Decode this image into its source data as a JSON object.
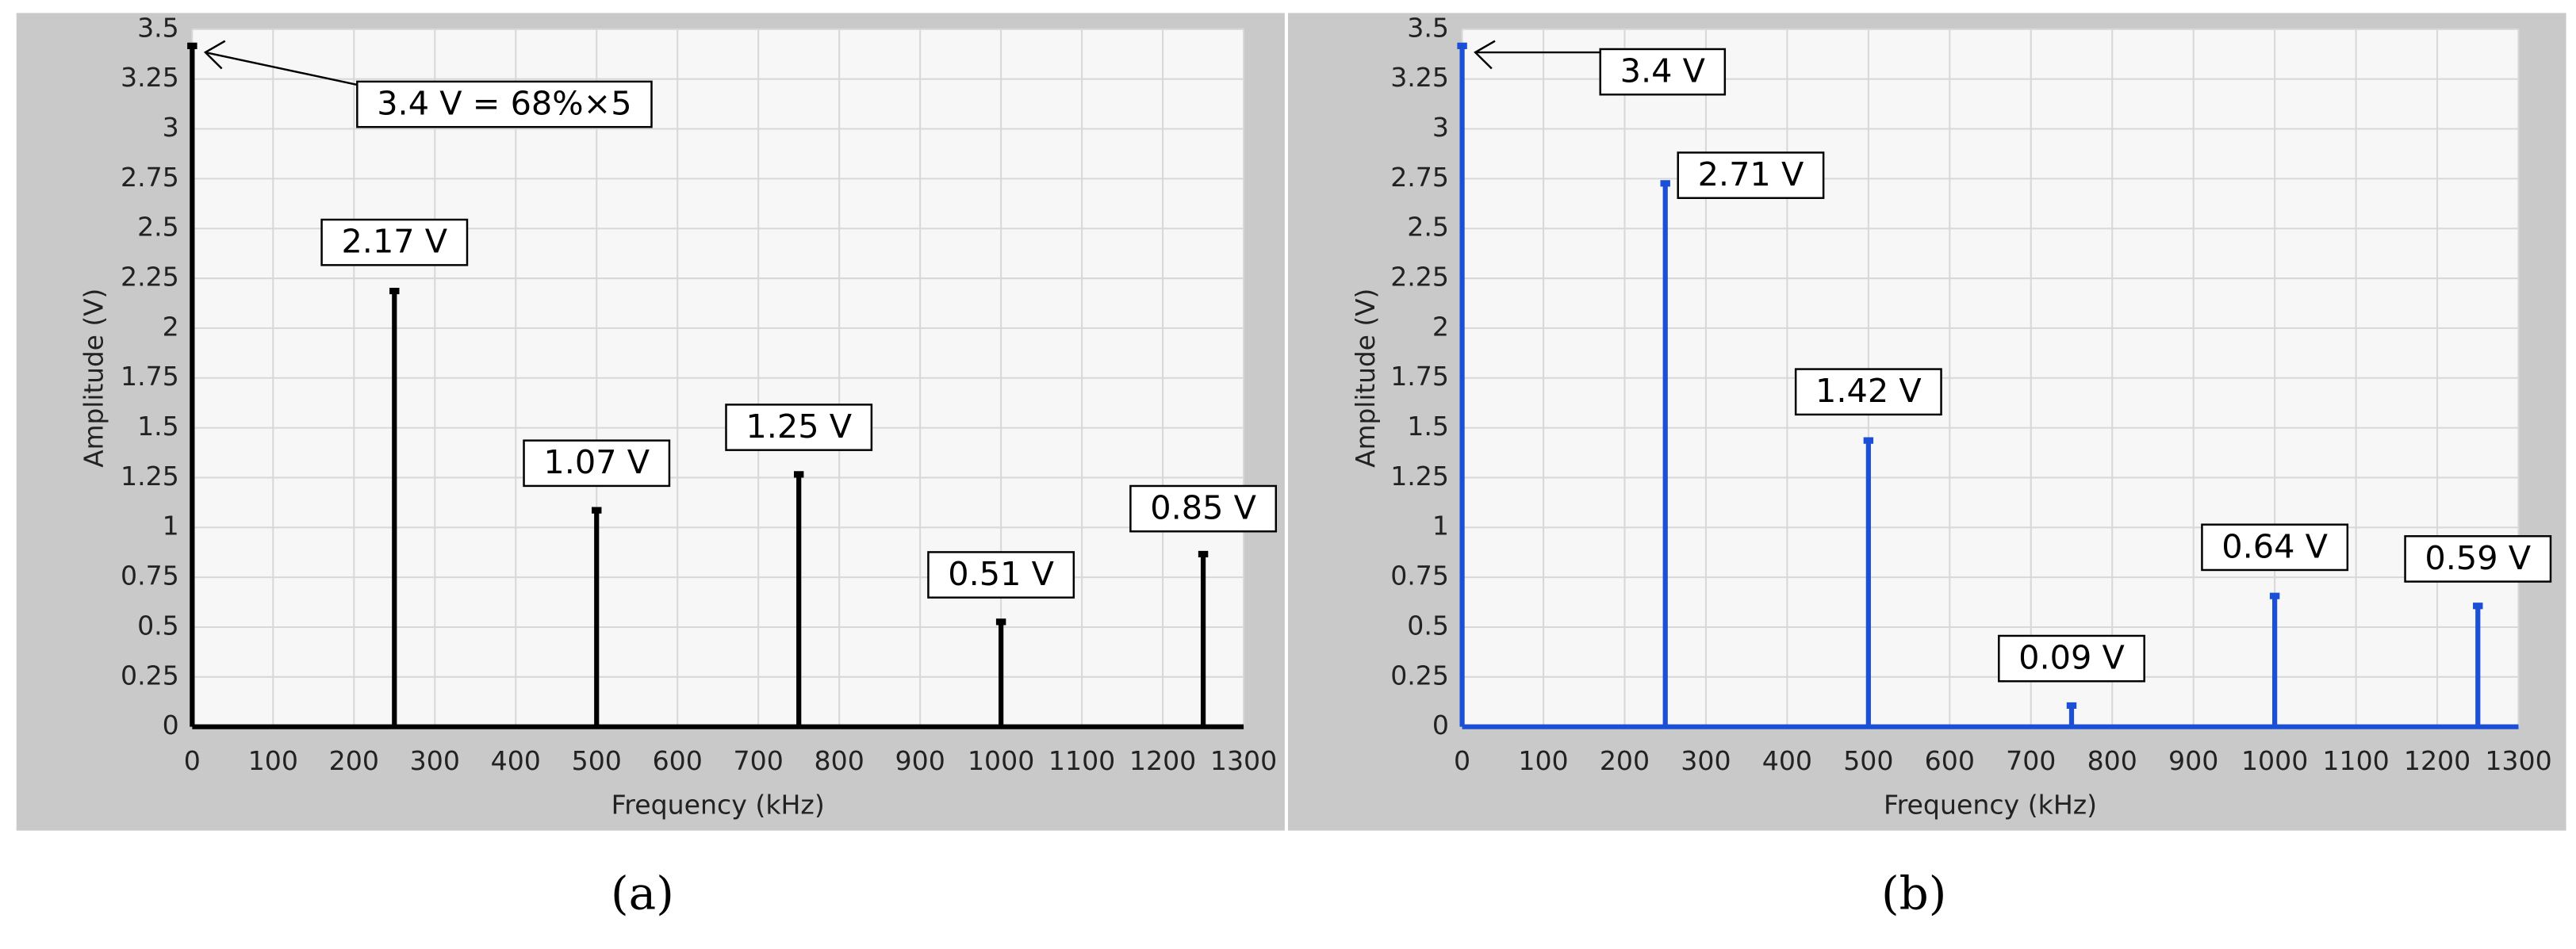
{
  "chart_data": [
    {
      "type": "stem",
      "caption": "(a)",
      "x_label": "Frequency (kHz)",
      "y_label": "Amplitude (V)",
      "x": [
        0,
        250,
        500,
        750,
        1000,
        1250
      ],
      "values": [
        3.4,
        2.17,
        1.07,
        1.25,
        0.51,
        0.85
      ],
      "value_labels": [
        "3.4 V = 68%×5",
        "2.17 V",
        "1.07 V",
        "1.25 V",
        "0.51 V",
        "0.85 V"
      ],
      "color": "#000000",
      "xlim": [
        0,
        1300
      ],
      "xticks": [
        0,
        100,
        200,
        300,
        400,
        500,
        600,
        700,
        800,
        900,
        1000,
        1100,
        1200,
        1300
      ],
      "ylim": [
        0,
        3.5
      ],
      "yticks": [
        0,
        0.25,
        0.5,
        0.75,
        1,
        1.25,
        1.5,
        1.75,
        2,
        2.25,
        2.5,
        2.75,
        3,
        3.25,
        3.5
      ],
      "grid": true
    },
    {
      "type": "stem",
      "caption": "(b)",
      "x_label": "Frequency (kHz)",
      "y_label": "Amplitude (V)",
      "x": [
        0,
        250,
        500,
        750,
        1000,
        1250
      ],
      "values": [
        3.4,
        2.71,
        1.42,
        0.09,
        0.64,
        0.59
      ],
      "value_labels": [
        "3.4 V",
        "2.71 V",
        "1.42 V",
        "0.09 V",
        "0.64 V",
        "0.59 V"
      ],
      "color": "#1a4fd6",
      "xlim": [
        0,
        1300
      ],
      "xticks": [
        0,
        100,
        200,
        300,
        400,
        500,
        600,
        700,
        800,
        900,
        1000,
        1100,
        1200,
        1300
      ],
      "ylim": [
        0,
        3.5
      ],
      "yticks": [
        0,
        0.25,
        0.5,
        0.75,
        1,
        1.25,
        1.5,
        1.75,
        2,
        2.25,
        2.5,
        2.75,
        3,
        3.25,
        3.5
      ],
      "grid": true
    }
  ]
}
